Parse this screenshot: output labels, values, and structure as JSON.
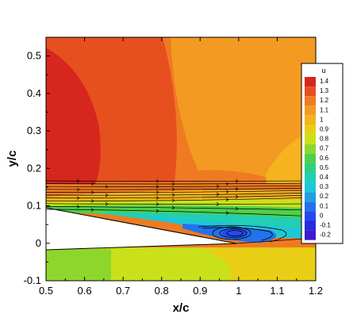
{
  "chart_data": {
    "type": "heatmap",
    "title": "",
    "xlabel": "x/c",
    "ylabel": "y/c",
    "xlim": [
      0.5,
      1.2
    ],
    "ylim": [
      -0.1,
      0.55
    ],
    "xticks": [
      "0.5",
      "0.6",
      "0.7",
      "0.8",
      "0.9",
      "1",
      "1.1",
      "1.2"
    ],
    "yticks": [
      "-0.1",
      "0",
      "0.1",
      "0.2",
      "0.3",
      "0.4",
      "0.5"
    ],
    "colorbar": {
      "title": "u",
      "levels": [
        "1.4",
        "1.3",
        "1.2",
        "1.1",
        "1",
        "0.9",
        "0.8",
        "0.7",
        "0.6",
        "0.5",
        "0.4",
        "0.3",
        "0.2",
        "0.1",
        "0",
        "-0.1",
        "-0.2"
      ],
      "colors": [
        "#d7261e",
        "#e6501e",
        "#ef7a22",
        "#f39a23",
        "#f5b41d",
        "#e8cf16",
        "#c9e01b",
        "#8fd62c",
        "#4ed04b",
        "#2fcf80",
        "#22cfb5",
        "#1fc6d6",
        "#1f9fe4",
        "#2272ec",
        "#2549ee",
        "#2a2ae0",
        "#3e1bd0"
      ],
      "legend_position": "right"
    },
    "overlay": "streamlines with arrows",
    "airfoil_surface": {
      "upper": [
        [
          0.5,
          0.095
        ],
        [
          0.6,
          0.078
        ],
        [
          0.7,
          0.058
        ],
        [
          0.8,
          0.04
        ],
        [
          0.9,
          0.02
        ],
        [
          1.0,
          0.0
        ]
      ],
      "lower": [
        [
          0.5,
          -0.015
        ],
        [
          0.6,
          -0.012
        ],
        [
          0.7,
          -0.009
        ],
        [
          0.8,
          -0.006
        ],
        [
          0.9,
          -0.003
        ],
        [
          1.0,
          0.0
        ]
      ]
    }
  }
}
